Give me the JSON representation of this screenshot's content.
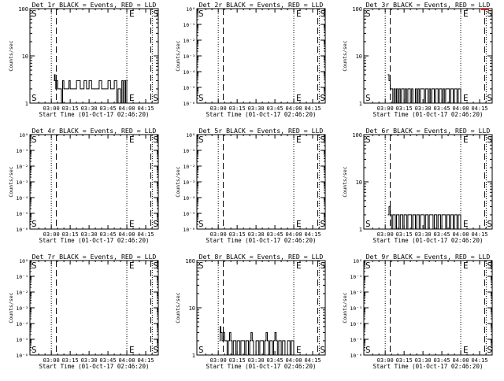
{
  "xlabel": "Start Time (01-Oct-17 02:46:20)",
  "ylabel": "Counts/sec",
  "time_ticks": [
    "03:00",
    "03:15",
    "03:30",
    "03:45",
    "04:00",
    "04:15"
  ],
  "tick_minutes": [
    0,
    15,
    30,
    45,
    60,
    75
  ],
  "xlim_minutes": [
    -17,
    85
  ],
  "markers": {
    "S": "S",
    "E": "E"
  },
  "colors": {
    "events": "#000000",
    "lld": "#ff0000"
  },
  "log_ticks_small": [
    "10⁻⁶",
    "10⁻⁵",
    "10⁻⁴",
    "10⁻³",
    "10⁻²",
    "10⁻¹",
    "10⁰"
  ],
  "chart_data": [
    {
      "type": "line",
      "title": "Det 1r BLACK = Events, RED = LLD",
      "scale": "log",
      "ylim": [
        1,
        100
      ],
      "y_ticks": [
        "100",
        "10",
        "1"
      ],
      "s_minute": 0,
      "s_dash_minute": 4,
      "e_minute": 60,
      "e_dash_minute": 79,
      "series": [
        {
          "events": [
            [
              2,
              3
            ],
            [
              2.5,
              4
            ],
            [
              3,
              3
            ],
            [
              3.5,
              2
            ],
            [
              4,
              3
            ],
            [
              5,
              2
            ],
            [
              6,
              2
            ],
            [
              7,
              2
            ],
            [
              8,
              1
            ],
            [
              9,
              3
            ],
            [
              10,
              2
            ],
            [
              12,
              2
            ],
            [
              14,
              3
            ],
            [
              15,
              2
            ],
            [
              17,
              2
            ],
            [
              20,
              3
            ],
            [
              23,
              2
            ],
            [
              26,
              3
            ],
            [
              28,
              2
            ],
            [
              30,
              3
            ],
            [
              32,
              2
            ],
            [
              35,
              2
            ],
            [
              38,
              3
            ],
            [
              40,
              2
            ],
            [
              42,
              2
            ],
            [
              45,
              3
            ],
            [
              47,
              2
            ],
            [
              50,
              3
            ],
            [
              52,
              1
            ],
            [
              53,
              2
            ],
            [
              55,
              1
            ],
            [
              56,
              3
            ],
            [
              57,
              1
            ],
            [
              58,
              3
            ],
            [
              59,
              1
            ],
            [
              60,
              3
            ]
          ]
        }
      ]
    },
    {
      "type": "line",
      "title": "Det 2r BLACK = Events, RED = LLD",
      "scale": "log",
      "ylim": [
        1e-06,
        1.0
      ],
      "s_minute": 0,
      "s_dash_minute": 4,
      "e_minute": 60,
      "e_dash_minute": 79,
      "series": [
        {
          "events": []
        }
      ]
    },
    {
      "type": "line",
      "title": "Det 3r BLACK = Events, RED = LLD",
      "scale": "log",
      "ylim": [
        1,
        100
      ],
      "y_ticks": [
        "100",
        "10",
        "1"
      ],
      "s_minute": 0,
      "s_dash_minute": 4,
      "e_minute": 60,
      "e_dash_minute": 79,
      "series": [
        {
          "events": [
            [
              2,
              4
            ],
            [
              3,
              3
            ],
            [
              4,
              2
            ],
            [
              5,
              2
            ],
            [
              6,
              1
            ],
            [
              7,
              2
            ],
            [
              8,
              1
            ],
            [
              9,
              2
            ],
            [
              10,
              1
            ],
            [
              11,
              2
            ],
            [
              12,
              1
            ],
            [
              13,
              2
            ],
            [
              14,
              2
            ],
            [
              15,
              1
            ],
            [
              16,
              2
            ],
            [
              17,
              1
            ],
            [
              18,
              2
            ],
            [
              19,
              2
            ],
            [
              20,
              1
            ],
            [
              21,
              2
            ],
            [
              22,
              1
            ],
            [
              24,
              2
            ],
            [
              25,
              1
            ],
            [
              26,
              2
            ],
            [
              27,
              1
            ],
            [
              28,
              2
            ],
            [
              30,
              2
            ],
            [
              31,
              1
            ],
            [
              32,
              2
            ],
            [
              34,
              1
            ],
            [
              35,
              2
            ],
            [
              36,
              1
            ],
            [
              37,
              2
            ],
            [
              38,
              2
            ],
            [
              39,
              1
            ],
            [
              40,
              2
            ],
            [
              42,
              1
            ],
            [
              43,
              2
            ],
            [
              44,
              2
            ],
            [
              45,
              1
            ],
            [
              46,
              2
            ],
            [
              47,
              1
            ],
            [
              48,
              2
            ],
            [
              50,
              2
            ],
            [
              51,
              1
            ],
            [
              52,
              2
            ],
            [
              53,
              2
            ],
            [
              54,
              1
            ],
            [
              55,
              2
            ],
            [
              56,
              2
            ],
            [
              57,
              1
            ],
            [
              58,
              2
            ],
            [
              59,
              2
            ],
            [
              60,
              1
            ]
          ]
        }
      ]
    },
    {
      "type": "line",
      "title": "Det 4r BLACK = Events, RED = LLD",
      "scale": "log",
      "ylim": [
        1e-06,
        1.0
      ],
      "s_minute": 0,
      "s_dash_minute": 4,
      "e_minute": 60,
      "e_dash_minute": 79,
      "series": [
        {
          "events": []
        }
      ]
    },
    {
      "type": "line",
      "title": "Det 5r BLACK = Events, RED = LLD",
      "scale": "log",
      "ylim": [
        1e-06,
        1.0
      ],
      "s_minute": 0,
      "s_dash_minute": 4,
      "e_minute": 60,
      "e_dash_minute": 79,
      "series": [
        {
          "events": []
        }
      ]
    },
    {
      "type": "line",
      "title": "Det 6r BLACK = Events, RED = LLD",
      "scale": "log",
      "ylim": [
        1,
        100
      ],
      "y_ticks": [
        "100",
        "10",
        "1"
      ],
      "s_minute": 0,
      "s_dash_minute": 4,
      "e_minute": 60,
      "e_dash_minute": 79,
      "series": [
        {
          "events": [
            [
              2,
              2
            ],
            [
              3,
              3
            ],
            [
              4,
              2
            ],
            [
              5,
              1
            ],
            [
              6,
              2
            ],
            [
              7,
              2
            ],
            [
              8,
              1
            ],
            [
              9,
              2
            ],
            [
              10,
              2
            ],
            [
              11,
              1
            ],
            [
              12,
              2
            ],
            [
              13,
              2
            ],
            [
              14,
              1
            ],
            [
              15,
              2
            ],
            [
              16,
              2
            ],
            [
              17,
              1
            ],
            [
              18,
              2
            ],
            [
              20,
              2
            ],
            [
              21,
              1
            ],
            [
              22,
              2
            ],
            [
              23,
              2
            ],
            [
              24,
              1
            ],
            [
              25,
              2
            ],
            [
              26,
              2
            ],
            [
              27,
              1
            ],
            [
              28,
              2
            ],
            [
              30,
              2
            ],
            [
              31,
              1
            ],
            [
              32,
              2
            ],
            [
              33,
              2
            ],
            [
              34,
              1
            ],
            [
              35,
              2
            ],
            [
              37,
              2
            ],
            [
              38,
              1
            ],
            [
              39,
              2
            ],
            [
              40,
              2
            ],
            [
              41,
              1
            ],
            [
              42,
              2
            ],
            [
              43,
              2
            ],
            [
              44,
              1
            ],
            [
              45,
              2
            ],
            [
              47,
              2
            ],
            [
              48,
              1
            ],
            [
              49,
              2
            ],
            [
              50,
              2
            ],
            [
              51,
              1
            ],
            [
              52,
              2
            ],
            [
              53,
              2
            ],
            [
              54,
              1
            ],
            [
              55,
              2
            ],
            [
              56,
              2
            ],
            [
              57,
              1
            ],
            [
              58,
              2
            ],
            [
              59,
              2
            ],
            [
              60,
              1
            ]
          ]
        }
      ]
    },
    {
      "type": "line",
      "title": "Det 7r BLACK = Events, RED = LLD",
      "scale": "log",
      "ylim": [
        1e-06,
        1.0
      ],
      "s_minute": 0,
      "s_dash_minute": 4,
      "e_minute": 60,
      "e_dash_minute": 79,
      "series": [
        {
          "events": []
        }
      ]
    },
    {
      "type": "line",
      "title": "Det 8r BLACK = Events, RED = LLD",
      "scale": "log",
      "ylim": [
        1,
        100
      ],
      "y_ticks": [
        "100",
        "10",
        "1"
      ],
      "s_minute": 0,
      "s_dash_minute": 4,
      "e_minute": 60,
      "e_dash_minute": 79,
      "series": [
        {
          "events": [
            [
              1,
              2
            ],
            [
              1.5,
              4
            ],
            [
              2,
              3
            ],
            [
              3,
              2
            ],
            [
              4,
              3
            ],
            [
              5,
              2
            ],
            [
              6,
              2
            ],
            [
              7,
              1
            ],
            [
              8,
              2
            ],
            [
              9,
              3
            ],
            [
              10,
              2
            ],
            [
              11,
              1
            ],
            [
              12,
              2
            ],
            [
              13,
              2
            ],
            [
              14,
              1
            ],
            [
              15,
              2
            ],
            [
              16,
              2
            ],
            [
              17,
              1
            ],
            [
              18,
              2
            ],
            [
              20,
              2
            ],
            [
              21,
              1
            ],
            [
              22,
              2
            ],
            [
              23,
              2
            ],
            [
              24,
              1
            ],
            [
              25,
              2
            ],
            [
              26,
              3
            ],
            [
              27,
              2
            ],
            [
              28,
              1
            ],
            [
              30,
              2
            ],
            [
              31,
              2
            ],
            [
              32,
              1
            ],
            [
              33,
              2
            ],
            [
              35,
              2
            ],
            [
              36,
              1
            ],
            [
              37,
              2
            ],
            [
              38,
              3
            ],
            [
              39,
              2
            ],
            [
              40,
              1
            ],
            [
              41,
              2
            ],
            [
              42,
              2
            ],
            [
              43,
              1
            ],
            [
              44,
              2
            ],
            [
              45,
              3
            ],
            [
              46,
              2
            ],
            [
              47,
              1
            ],
            [
              48,
              2
            ],
            [
              49,
              2
            ],
            [
              50,
              1
            ],
            [
              51,
              2
            ],
            [
              52,
              2
            ],
            [
              53,
              1
            ],
            [
              55,
              2
            ],
            [
              56,
              2
            ],
            [
              57,
              1
            ],
            [
              58,
              2
            ],
            [
              59,
              2
            ],
            [
              60,
              1
            ]
          ]
        }
      ]
    },
    {
      "type": "line",
      "title": "Det 9r BLACK = Events, RED = LLD",
      "scale": "log",
      "ylim": [
        1e-06,
        1.0
      ],
      "s_minute": 0,
      "s_dash_minute": 4,
      "e_minute": 60,
      "e_dash_minute": 79,
      "series": [
        {
          "events": []
        }
      ]
    }
  ]
}
